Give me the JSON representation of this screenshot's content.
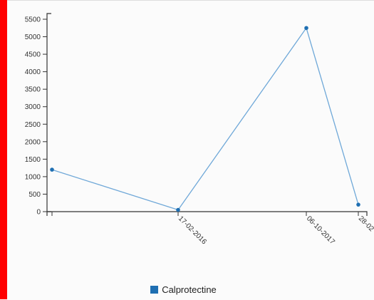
{
  "colors": {
    "accent": "#ff0000",
    "series": "#6fa8d8",
    "marker": "#1f6fb2",
    "legend_swatch": "#1f6fb2"
  },
  "chart_data": {
    "type": "line",
    "title": "",
    "xlabel": "",
    "ylabel": "",
    "ylim": [
      0,
      5500
    ],
    "yticks": [
      0,
      500,
      1000,
      1500,
      2000,
      2500,
      3000,
      3500,
      4000,
      4500,
      5000,
      5500
    ],
    "x_labels": [
      "17-02-2016",
      "06-10-2017",
      "28-02"
    ],
    "series": [
      {
        "name": "Calprotectine",
        "points": [
          {
            "label": "",
            "y": 1200
          },
          {
            "label": "17-02-2016",
            "y": 50
          },
          {
            "label": "06-10-2017",
            "y": 5250
          },
          {
            "label": "28-02",
            "y": 200
          }
        ]
      }
    ],
    "legend": "bottom-center",
    "grid": false
  }
}
